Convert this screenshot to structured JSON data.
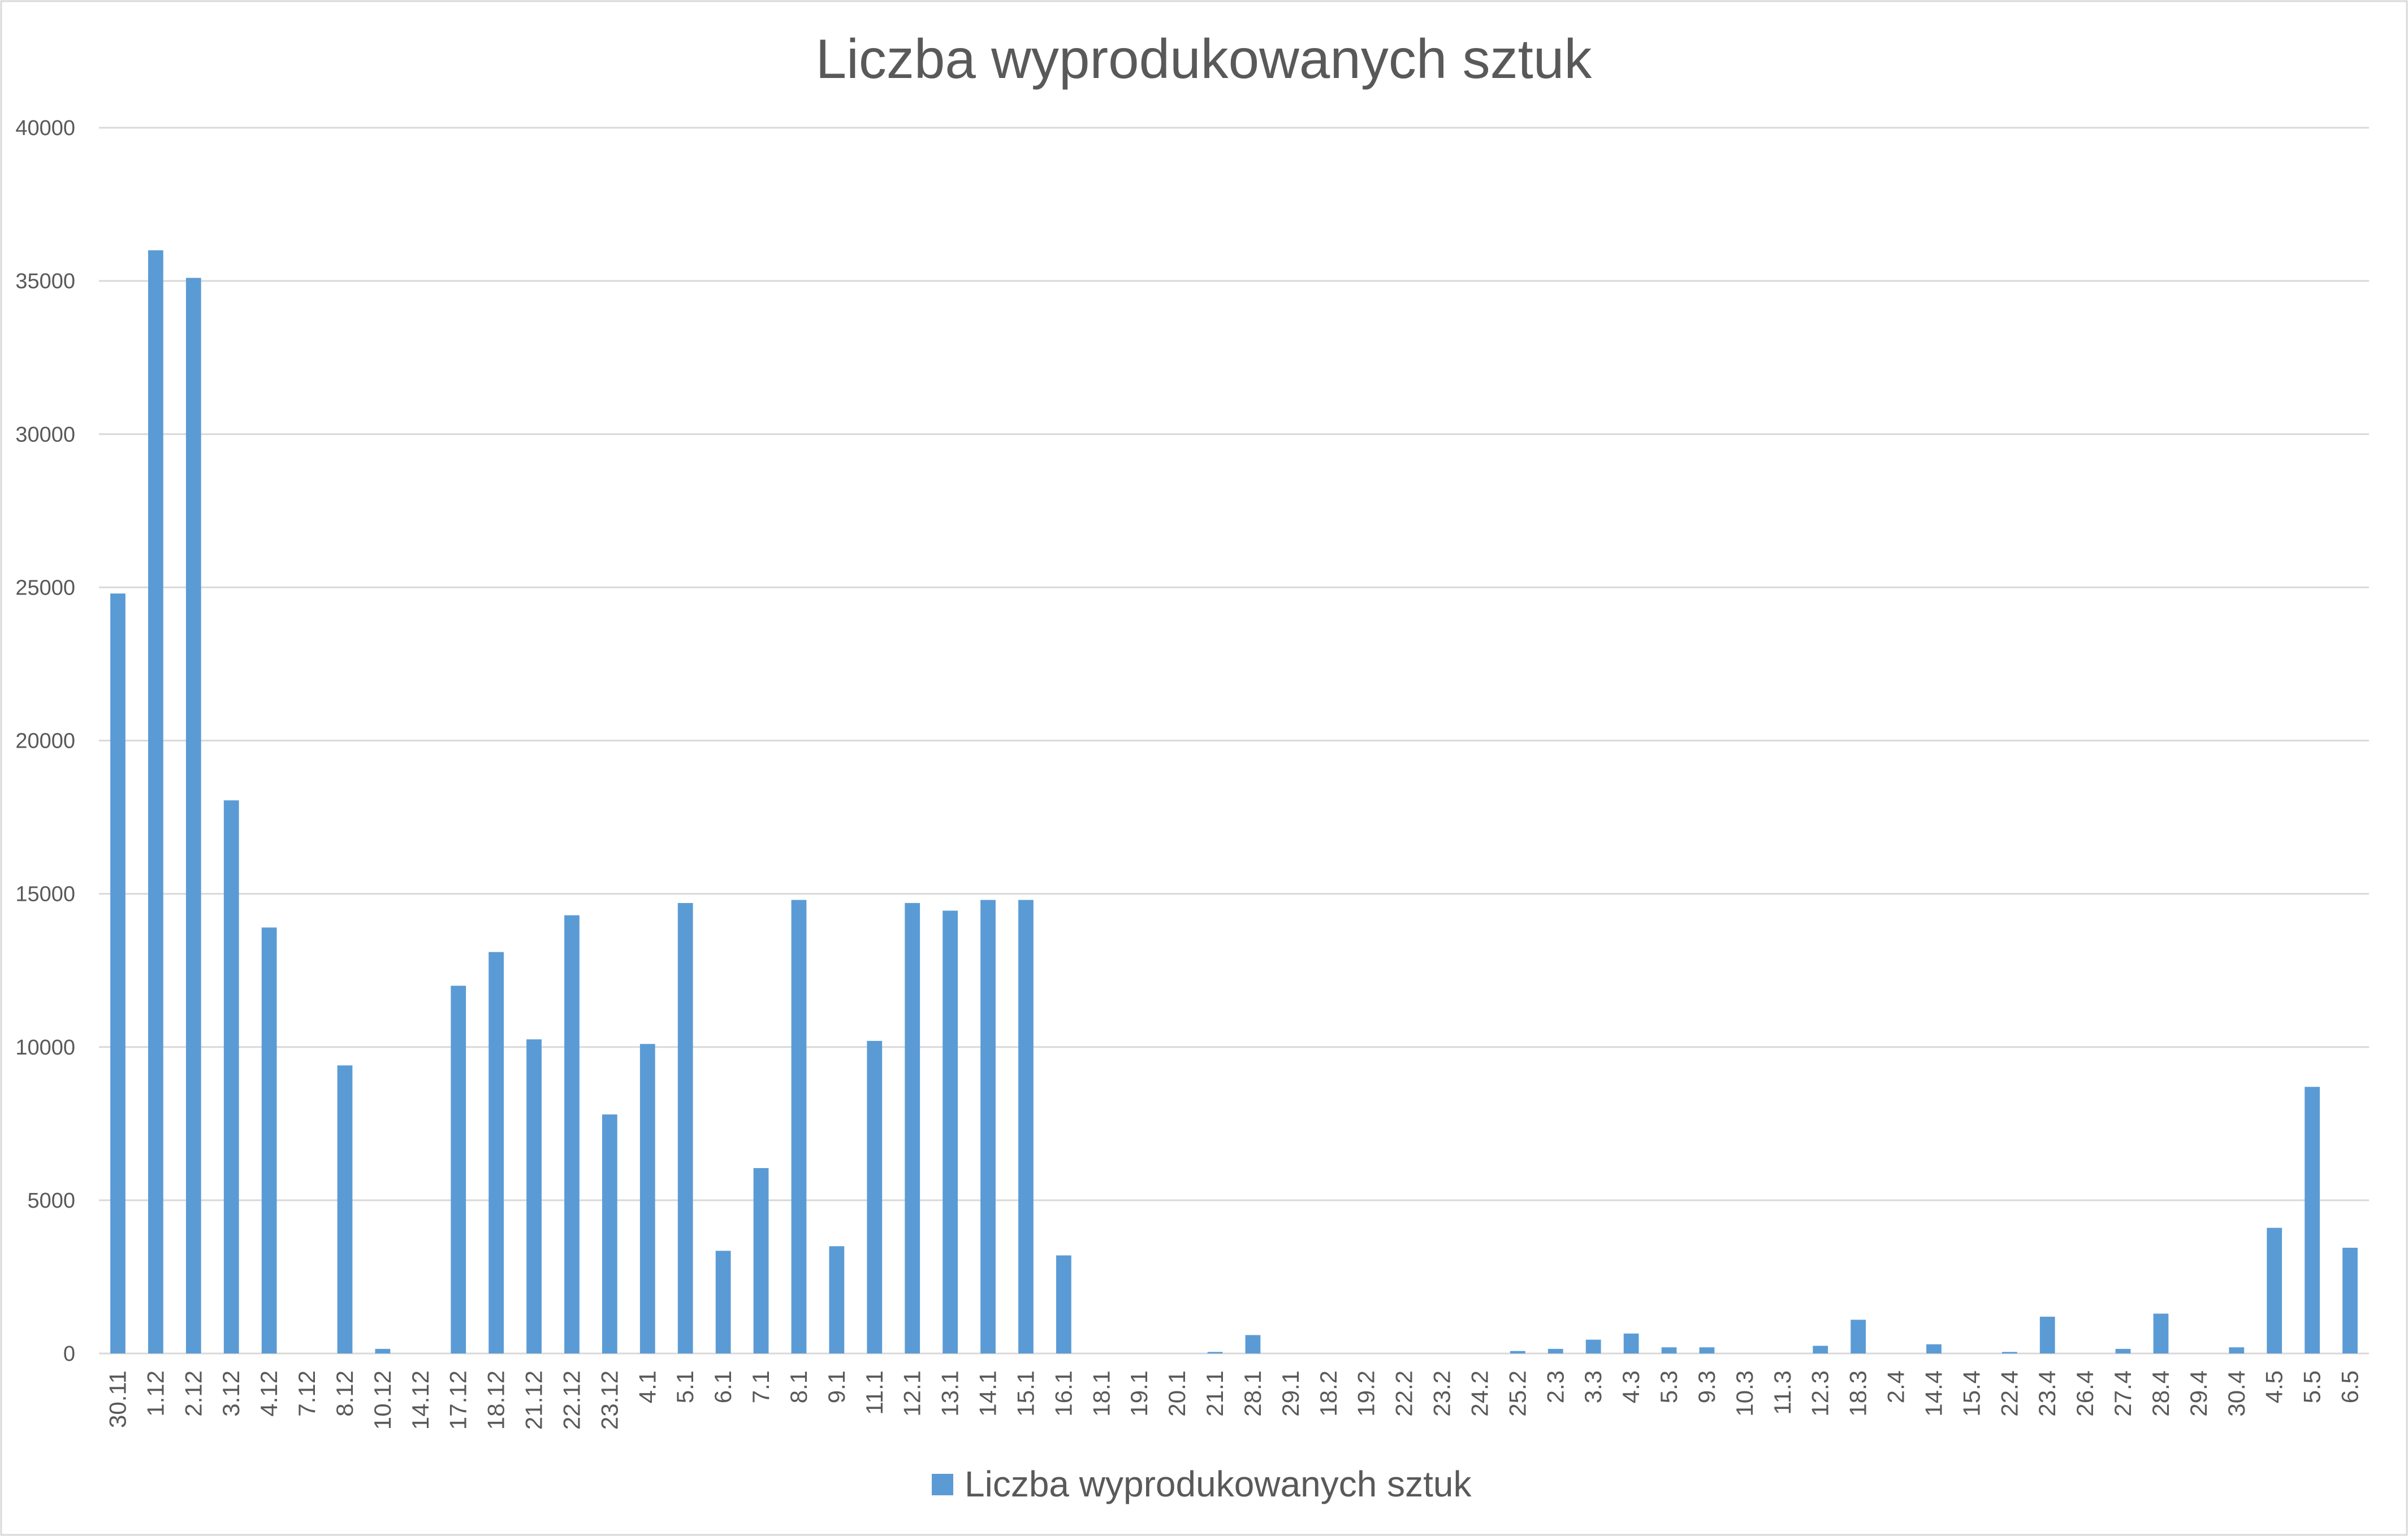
{
  "chart_data": {
    "type": "bar",
    "title": "Liczba wyprodukowanych sztuk",
    "xlabel": "",
    "ylabel": "",
    "ylim": [
      0,
      40000
    ],
    "yticks": [
      0,
      5000,
      10000,
      15000,
      20000,
      25000,
      30000,
      35000,
      40000
    ],
    "grid": true,
    "legend_position": "bottom",
    "categories": [
      "30.11",
      "1.12",
      "2.12",
      "3.12",
      "4.12",
      "7.12",
      "8.12",
      "10.12",
      "14.12",
      "17.12",
      "18.12",
      "21.12",
      "22.12",
      "23.12",
      "4.1",
      "5.1",
      "6.1",
      "7.1",
      "8.1",
      "9.1",
      "11.1",
      "12.1",
      "13.1",
      "14.1",
      "15.1",
      "16.1",
      "18.1",
      "19.1",
      "20.1",
      "21.1",
      "28.1",
      "29.1",
      "18.2",
      "19.2",
      "22.2",
      "23.2",
      "24.2",
      "25.2",
      "2.3",
      "3.3",
      "4.3",
      "5.3",
      "9.3",
      "10.3",
      "11.3",
      "12.3",
      "18.3",
      "2.4",
      "14.4",
      "15.4",
      "22.4",
      "23.4",
      "26.4",
      "27.4",
      "28.4",
      "29.4",
      "30.4",
      "4.5",
      "5.5",
      "6.5"
    ],
    "series": [
      {
        "name": "Liczba wyprodukowanych sztuk",
        "color": "#5B9BD5",
        "values": [
          24800,
          36000,
          35100,
          18050,
          13900,
          0,
          9400,
          150,
          0,
          12000,
          13100,
          10250,
          14300,
          7800,
          10100,
          14700,
          3350,
          6050,
          14800,
          3500,
          10200,
          14700,
          14450,
          14800,
          14800,
          3200,
          0,
          0,
          0,
          50,
          600,
          0,
          0,
          0,
          0,
          0,
          0,
          80,
          150,
          450,
          650,
          200,
          200,
          0,
          0,
          250,
          1100,
          0,
          300,
          0,
          50,
          1200,
          0,
          150,
          1300,
          0,
          200,
          4100,
          8700,
          3450
        ]
      }
    ]
  }
}
